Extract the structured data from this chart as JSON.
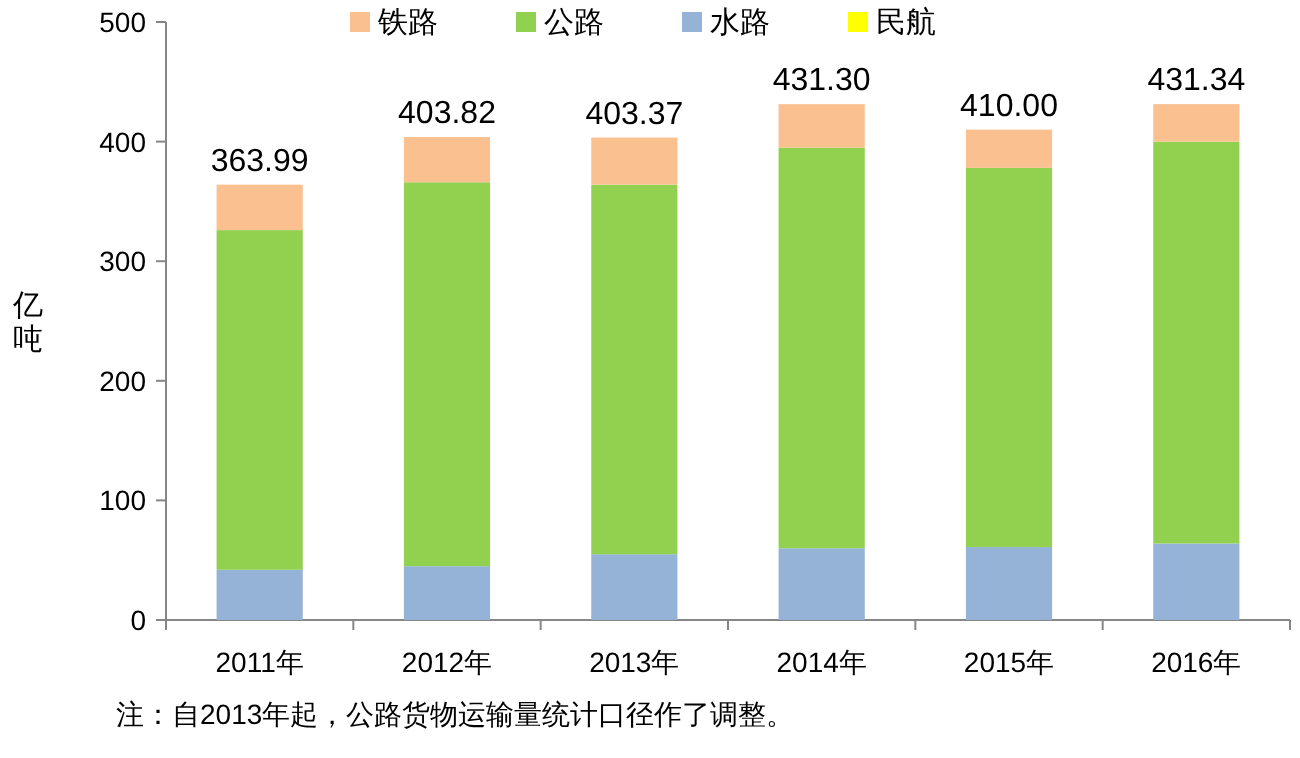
{
  "chart_data": {
    "type": "bar",
    "stacked": true,
    "ylabel": "亿吨",
    "categories": [
      "2011年",
      "2012年",
      "2013年",
      "2014年",
      "2015年",
      "2016年"
    ],
    "series": [
      {
        "name": "水路",
        "color": "#95b3d7",
        "values": [
          42,
          45,
          55,
          60,
          61,
          64
        ]
      },
      {
        "name": "公路",
        "color": "#92d050",
        "values": [
          284,
          321,
          309,
          335,
          317,
          336
        ]
      },
      {
        "name": "铁路",
        "color": "#fac090",
        "values": [
          37.99,
          37.82,
          39.37,
          36.3,
          32,
          31.34
        ]
      },
      {
        "name": "民航",
        "color": "#ffff00",
        "values": [
          0,
          0,
          0,
          0,
          0,
          0
        ]
      }
    ],
    "totals": [
      "363.99",
      "403.82",
      "403.37",
      "431.30",
      "410.00",
      "431.34"
    ],
    "ylim": [
      0,
      500
    ],
    "yticks": [
      0,
      100,
      200,
      300,
      400,
      500
    ],
    "legend": "top",
    "grid": false,
    "annotations": [
      "注：自2013年起，公路货物运输量统计口径作了调整。"
    ]
  }
}
